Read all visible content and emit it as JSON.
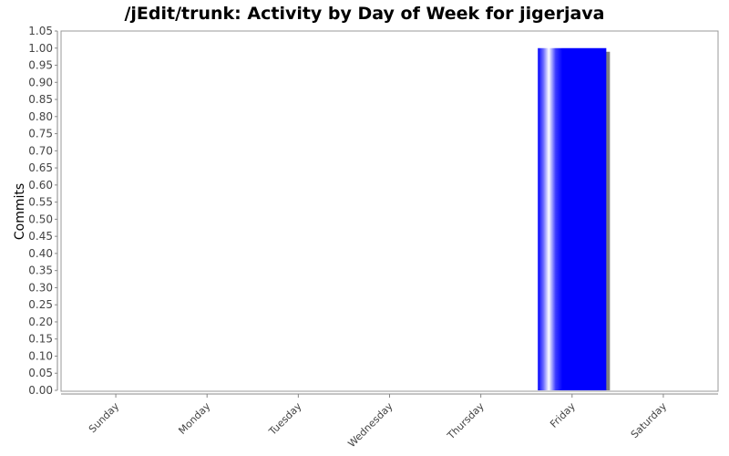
{
  "chart_data": {
    "type": "bar",
    "title": "/jEdit/trunk: Activity by Day of Week for jigerjava",
    "xlabel": "",
    "ylabel": "Commits",
    "categories": [
      "Sunday",
      "Monday",
      "Tuesday",
      "Wednesday",
      "Thursday",
      "Friday",
      "Saturday"
    ],
    "values": [
      0,
      0,
      0,
      0,
      0,
      1,
      0
    ],
    "ylim": [
      0,
      1.05
    ],
    "ytick_step": 0.05,
    "grid": false,
    "legend": "none",
    "bar_color": "#0000ff",
    "shadow_color": "#808080"
  }
}
